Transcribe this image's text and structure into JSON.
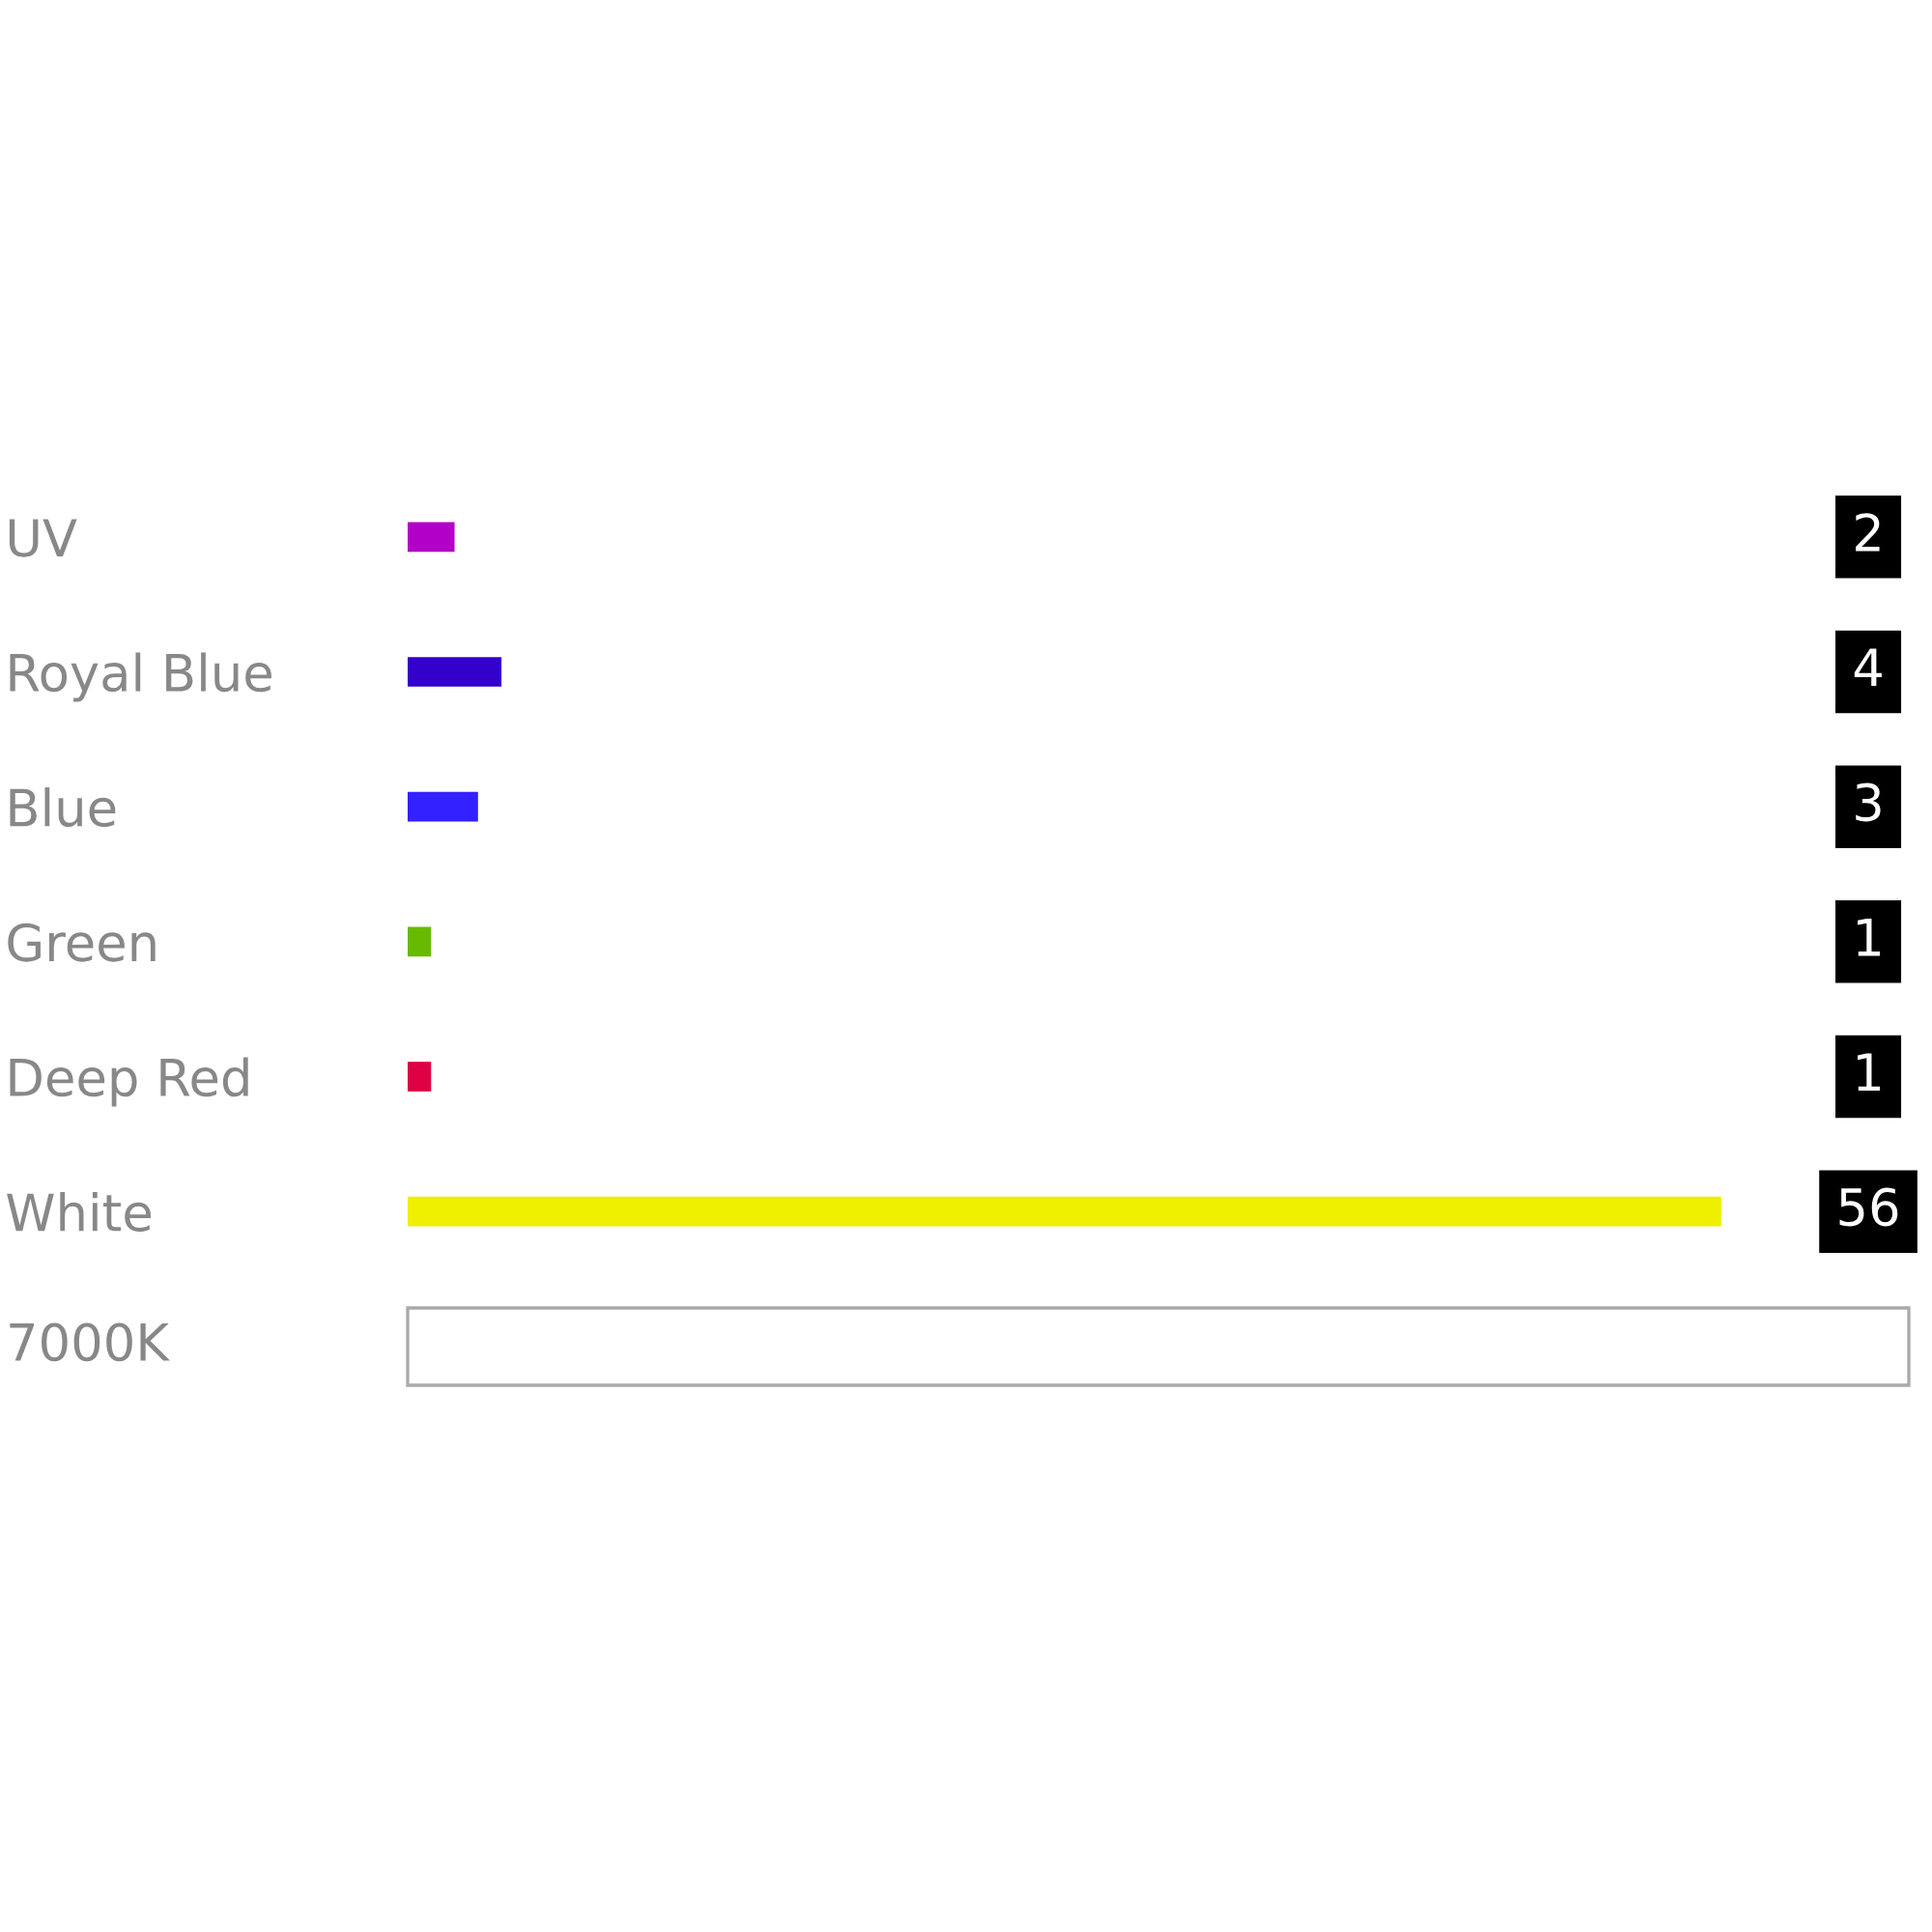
{
  "chart_data": {
    "type": "bar",
    "orientation": "horizontal",
    "categories": [
      "UV",
      "Royal Blue",
      "Blue",
      "Green",
      "Deep Red",
      "White"
    ],
    "values": [
      2,
      4,
      3,
      1,
      1,
      56
    ],
    "colors": [
      "#b300c8",
      "#3300cc",
      "#3322ff",
      "#66bb00",
      "#dd0044",
      "#eef000"
    ],
    "xlim": [
      0,
      64
    ],
    "tick_labels": "y",
    "data_labels": true,
    "grid": false,
    "legend": false,
    "annotations": [
      "7000K"
    ]
  }
}
